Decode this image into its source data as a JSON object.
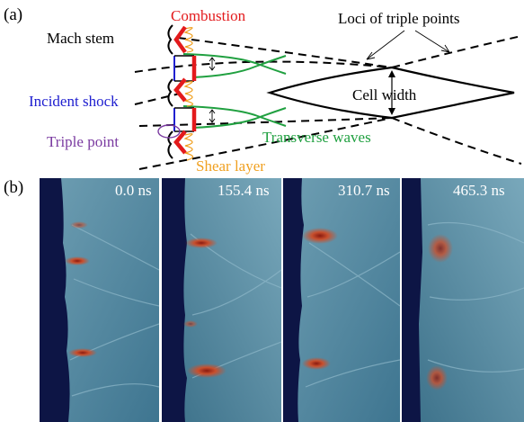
{
  "panel_a": {
    "tag": "(a)",
    "labels": {
      "combustion": "Combustion",
      "mach_stem": "Mach stem",
      "loci": "Loci of triple points",
      "incident_shock": "Incident shock",
      "cell_width": "Cell width",
      "triple_point": "Triple point",
      "transverse_waves": "Transverse waves",
      "shear_layer": "Shear layer"
    },
    "colors": {
      "combustion": "#e31a1c",
      "mach_stem": "#000000",
      "incident_shock": "#2020d0",
      "triple_point": "#7a3aa0",
      "transverse_waves": "#20a040",
      "shear_layer": "#f0a020"
    }
  },
  "panel_b": {
    "tag": "(b)",
    "frames": [
      {
        "time": "0.0 ns"
      },
      {
        "time": "155.4 ns"
      },
      {
        "time": "310.7 ns"
      },
      {
        "time": "465.3 ns"
      }
    ],
    "colors": {
      "background_flow": "#4a7f98",
      "unburnt": "#0d1545",
      "hot": "#c0502e"
    }
  }
}
